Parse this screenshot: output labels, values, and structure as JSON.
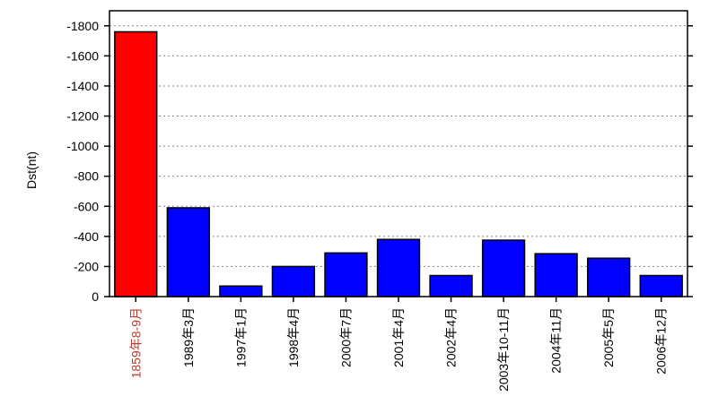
{
  "chart_data": {
    "type": "bar",
    "y_label": "Dst(nt)",
    "categories": [
      "1859年8-9月",
      "1989年3月",
      "1997年1月",
      "1998年4月",
      "2000年7月",
      "2001年4月",
      "2002年4月",
      "2003年10-11月",
      "2004年11月",
      "2005年5月",
      "2006年12月"
    ],
    "values": [
      -1760,
      -590,
      -70,
      -200,
      -290,
      -380,
      -140,
      -375,
      -285,
      -255,
      -140
    ],
    "colors": [
      "#ff0000",
      "#0000ff",
      "#0000ff",
      "#0000ff",
      "#0000ff",
      "#0000ff",
      "#0000ff",
      "#0000ff",
      "#0000ff",
      "#0000ff",
      "#0000ff"
    ],
    "label_colors": [
      "#c0392b",
      "#000000",
      "#000000",
      "#000000",
      "#000000",
      "#000000",
      "#000000",
      "#000000",
      "#000000",
      "#000000",
      "#000000"
    ],
    "ylim": [
      0,
      -1900
    ],
    "yticks": [
      0,
      -200,
      -400,
      -600,
      -800,
      -1000,
      -1200,
      -1400,
      -1600,
      -1800
    ],
    "grid": true
  }
}
